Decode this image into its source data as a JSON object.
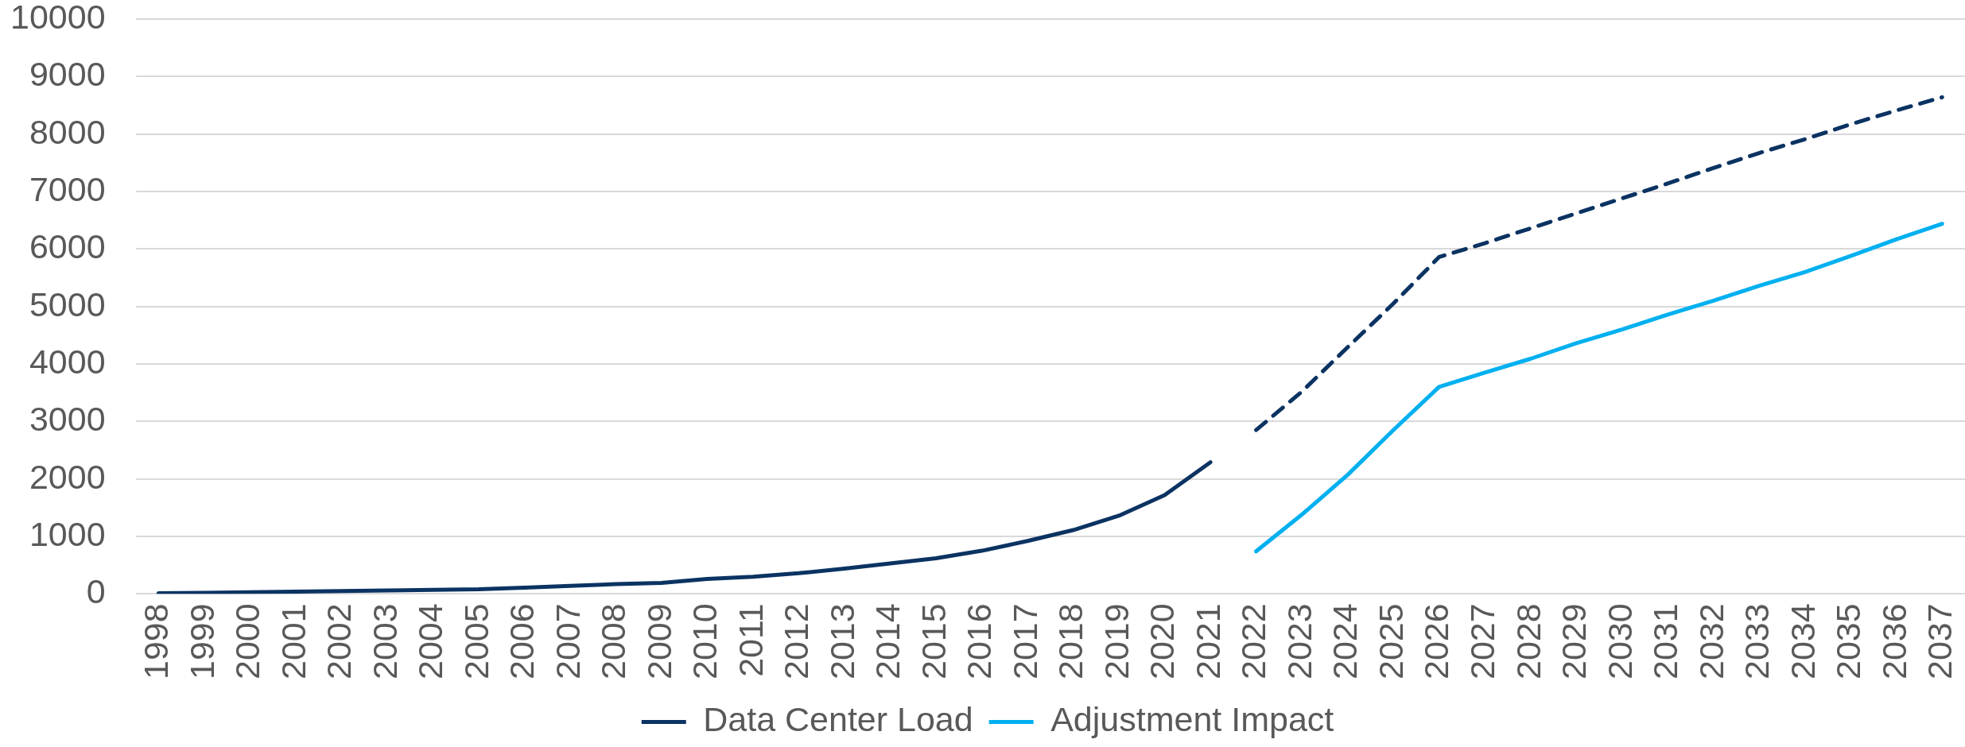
{
  "chart_data": {
    "type": "line",
    "categories": [
      "1998",
      "1999",
      "2000",
      "2001",
      "2002",
      "2003",
      "2004",
      "2005",
      "2006",
      "2007",
      "2008",
      "2009",
      "2010",
      "2011",
      "2012",
      "2013",
      "2014",
      "2015",
      "2016",
      "2017",
      "2018",
      "2019",
      "2020",
      "2021",
      "2022",
      "2023",
      "2024",
      "2025",
      "2026",
      "2027",
      "2028",
      "2029",
      "2030",
      "2031",
      "2032",
      "2033",
      "2034",
      "2035",
      "2036",
      "2037"
    ],
    "series": [
      {
        "name": "Data Center Load",
        "color": "#0b3362",
        "values": [
          10,
          20,
          30,
          40,
          50,
          60,
          70,
          80,
          110,
          140,
          170,
          190,
          260,
          300,
          360,
          440,
          530,
          620,
          750,
          920,
          1110,
          1360,
          1720,
          2290,
          null,
          null,
          null,
          null,
          null,
          null,
          null,
          null,
          null,
          null,
          null,
          null,
          null,
          null,
          null,
          null
        ]
      },
      {
        "color": "#0b3362",
        "line_style": "dashed",
        "values": [
          null,
          null,
          null,
          null,
          null,
          null,
          null,
          null,
          null,
          null,
          null,
          null,
          null,
          null,
          null,
          null,
          null,
          null,
          null,
          null,
          null,
          null,
          null,
          null,
          2850,
          3520,
          4290,
          5050,
          5860,
          6100,
          6360,
          6620,
          6880,
          7140,
          7410,
          7670,
          7910,
          8170,
          8410,
          8640
        ]
      },
      {
        "name": "Adjustment Impact",
        "color": "#00b0f0",
        "values": [
          null,
          null,
          null,
          null,
          null,
          null,
          null,
          null,
          null,
          null,
          null,
          null,
          null,
          null,
          null,
          null,
          null,
          null,
          null,
          null,
          null,
          null,
          null,
          null,
          740,
          1380,
          2070,
          2850,
          3600,
          3850,
          4090,
          4360,
          4600,
          4860,
          5100,
          5360,
          5600,
          5880,
          6170,
          6440
        ]
      }
    ],
    "ylim": [
      0,
      10000
    ],
    "yticks": [
      0,
      1000,
      2000,
      3000,
      4000,
      5000,
      6000,
      7000,
      8000,
      9000,
      10000
    ],
    "grid": "y",
    "legend": "bottom",
    "marker": "none",
    "line_style": "solid"
  }
}
